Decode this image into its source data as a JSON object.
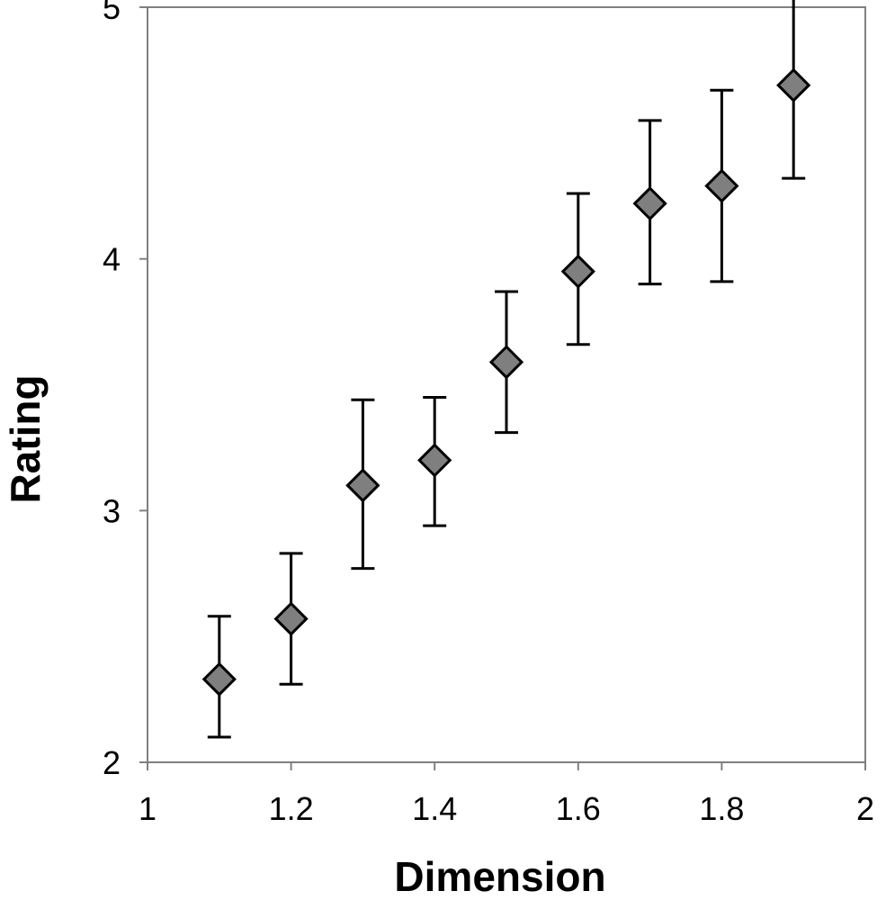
{
  "chart_data": {
    "type": "scatter",
    "title": "",
    "xlabel": "Dimension",
    "ylabel": "Rating",
    "xlim": [
      1,
      2
    ],
    "ylim": [
      2,
      5
    ],
    "xticks": [
      1,
      1.2,
      1.4,
      1.6,
      1.8,
      2
    ],
    "yticks": [
      2,
      3,
      4,
      5
    ],
    "xtick_labels": [
      "1",
      "1.2",
      "1.4",
      "1.6",
      "1.8",
      "2"
    ],
    "ytick_labels": [
      "2",
      "3",
      "4",
      "5"
    ],
    "grid": false,
    "legend": "none",
    "marker": "diamond",
    "marker_color": "#7f7f7f",
    "series": [
      {
        "points": [
          {
            "x": 1.1,
            "y": 2.33,
            "err_low": 2.1,
            "err_high": 2.58
          },
          {
            "x": 1.2,
            "y": 2.57,
            "err_low": 2.31,
            "err_high": 2.83
          },
          {
            "x": 1.3,
            "y": 3.1,
            "err_low": 2.77,
            "err_high": 3.44
          },
          {
            "x": 1.4,
            "y": 3.2,
            "err_low": 2.94,
            "err_high": 3.45
          },
          {
            "x": 1.5,
            "y": 3.59,
            "err_low": 3.31,
            "err_high": 3.87
          },
          {
            "x": 1.6,
            "y": 3.95,
            "err_low": 3.66,
            "err_high": 4.26
          },
          {
            "x": 1.7,
            "y": 4.22,
            "err_low": 3.9,
            "err_high": 4.55
          },
          {
            "x": 1.8,
            "y": 4.29,
            "err_low": 3.91,
            "err_high": 4.67
          },
          {
            "x": 1.9,
            "y": 4.69,
            "err_low": 4.32,
            "err_high": 5.07
          }
        ]
      }
    ]
  }
}
